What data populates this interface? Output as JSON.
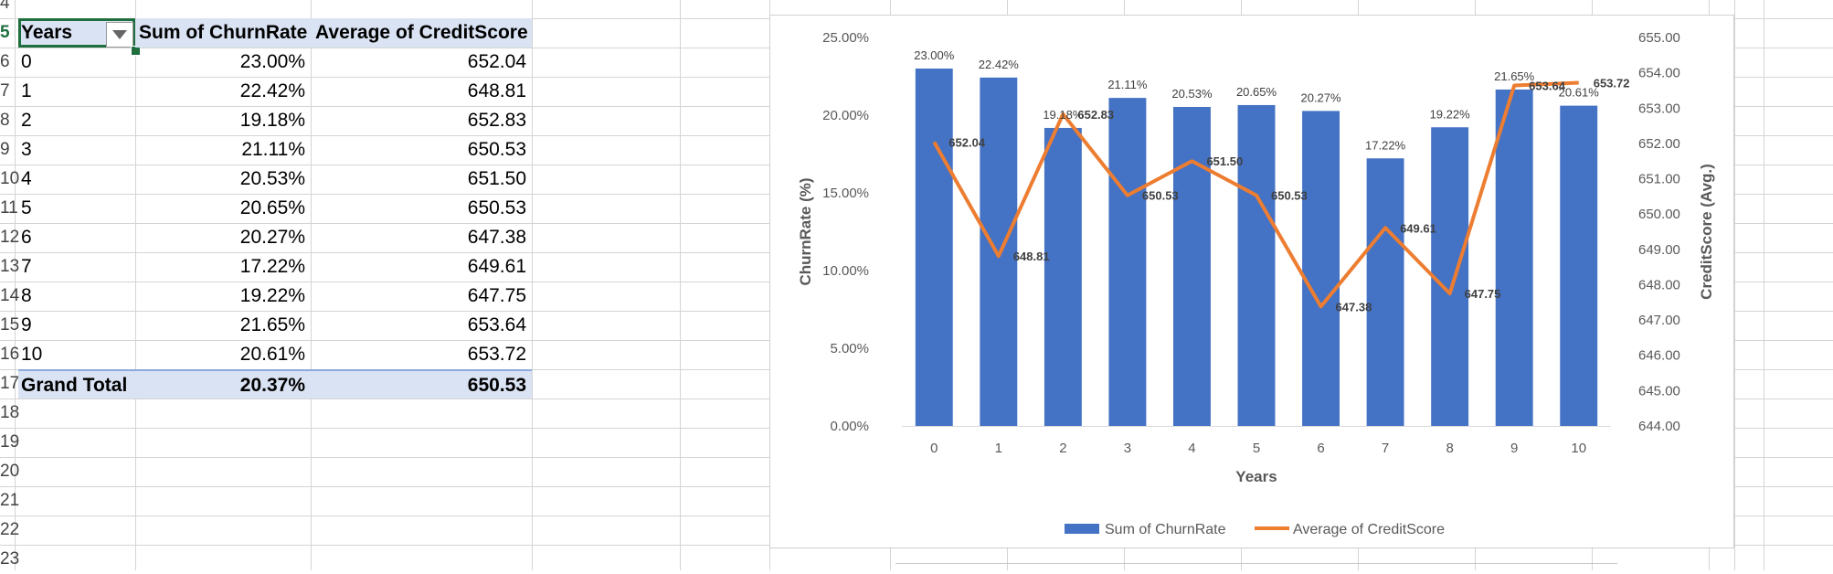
{
  "spreadsheet": {
    "row_numbers": [
      "4",
      "5",
      "6",
      "7",
      "8",
      "9",
      "10",
      "11",
      "12",
      "13",
      "14",
      "15",
      "16",
      "17",
      "18",
      "19",
      "20",
      "21",
      "22",
      "23"
    ],
    "pivot": {
      "headers": [
        "Years",
        "Sum of ChurnRate",
        "Average of CreditScore"
      ],
      "rows": [
        {
          "year": "0",
          "churn": "23.00%",
          "credit": "652.04"
        },
        {
          "year": "1",
          "churn": "22.42%",
          "credit": "648.81"
        },
        {
          "year": "2",
          "churn": "19.18%",
          "credit": "652.83"
        },
        {
          "year": "3",
          "churn": "21.11%",
          "credit": "650.53"
        },
        {
          "year": "4",
          "churn": "20.53%",
          "credit": "651.50"
        },
        {
          "year": "5",
          "churn": "20.65%",
          "credit": "650.53"
        },
        {
          "year": "6",
          "churn": "20.27%",
          "credit": "647.38"
        },
        {
          "year": "7",
          "churn": "17.22%",
          "credit": "649.61"
        },
        {
          "year": "8",
          "churn": "19.22%",
          "credit": "647.75"
        },
        {
          "year": "9",
          "churn": "21.65%",
          "credit": "653.64"
        },
        {
          "year": "10",
          "churn": "20.61%",
          "credit": "653.72"
        }
      ],
      "grand_total": {
        "label": "Grand Total",
        "churn": "20.37%",
        "credit": "650.53"
      }
    },
    "filter_icon": "dropdown-triangle-icon"
  },
  "chart_data": {
    "type": "bar",
    "combo": "bar+line",
    "categories": [
      "0",
      "1",
      "2",
      "3",
      "4",
      "5",
      "6",
      "7",
      "8",
      "9",
      "10"
    ],
    "series": [
      {
        "name": "Sum of ChurnRate",
        "type": "bar",
        "axis": "primary",
        "values": [
          23.0,
          22.42,
          19.18,
          21.11,
          20.53,
          20.65,
          20.27,
          17.22,
          19.22,
          21.65,
          20.61
        ],
        "labels": [
          "23.00%",
          "22.42%",
          "19.18%",
          "21.11%",
          "20.53%",
          "20.65%",
          "20.27%",
          "17.22%",
          "19.22%",
          "21.65%",
          "20.61%"
        ],
        "color": "#4472c4"
      },
      {
        "name": "Average of CreditScore",
        "type": "line",
        "axis": "secondary",
        "values": [
          652.04,
          648.81,
          652.83,
          650.53,
          651.5,
          650.53,
          647.38,
          649.61,
          647.75,
          653.64,
          653.72
        ],
        "labels": [
          "652.04",
          "648.81",
          "652.83",
          "650.53",
          "651.50",
          "650.53",
          "647.38",
          "649.61",
          "647.75",
          "653.64",
          "653.72"
        ],
        "color": "#ed7d31"
      }
    ],
    "xlabel": "Years",
    "ylabel": "ChurnRate (%)",
    "y2label": "CreditScore (Avg.)",
    "ylim": [
      0,
      25
    ],
    "y2lim": [
      644,
      655
    ],
    "yticks": [
      "0.00%",
      "5.00%",
      "10.00%",
      "15.00%",
      "20.00%",
      "25.00%"
    ],
    "y2ticks": [
      "644.00",
      "645.00",
      "646.00",
      "647.00",
      "648.00",
      "649.00",
      "650.00",
      "651.00",
      "652.00",
      "653.00",
      "654.00",
      "655.00"
    ],
    "legend_position": "bottom",
    "grid": false
  }
}
